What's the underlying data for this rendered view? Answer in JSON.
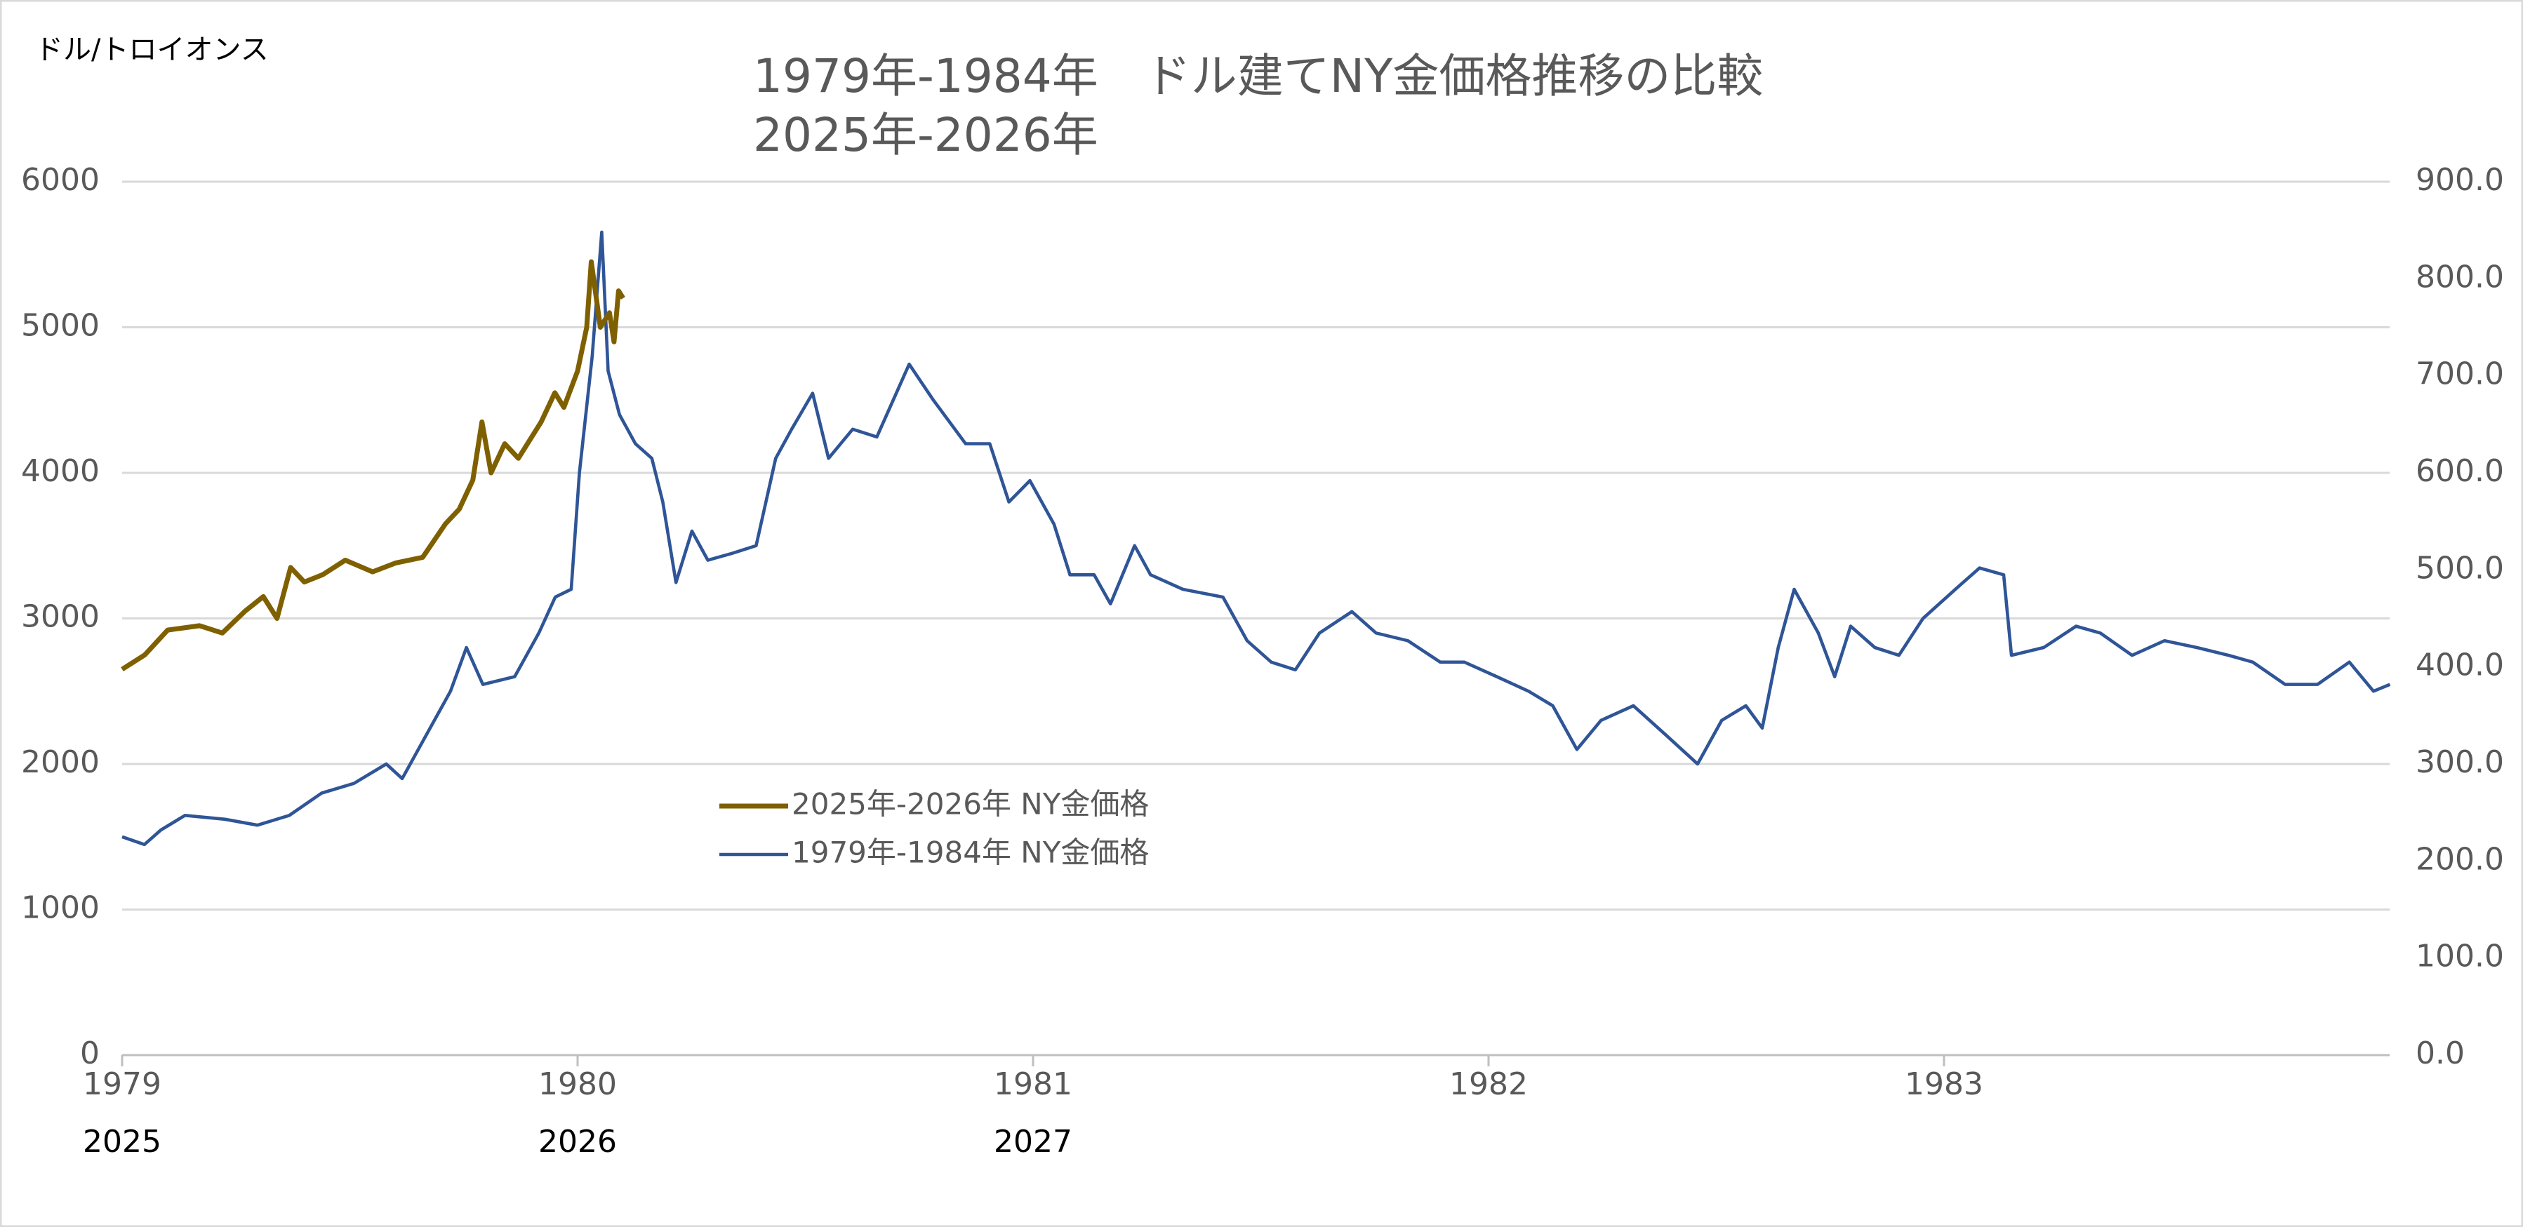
{
  "chart_data": {
    "type": "line",
    "title": [
      "1979年-1984年　ドル建てNY金価格推移の比較",
      "2025年-2026年"
    ],
    "y_axis_label": "ドル/トロイオンス",
    "xlim": [
      1979,
      1984
    ],
    "xticks": [
      1979,
      1980,
      1981,
      1982,
      1983
    ],
    "x2ticks": [
      {
        "value": 1979,
        "label": "2025"
      },
      {
        "value": 1980,
        "label": "2026"
      },
      {
        "value": 1981,
        "label": "2027"
      }
    ],
    "ylim": [
      0,
      6000
    ],
    "yticks": [
      0,
      1000,
      2000,
      3000,
      4000,
      5000,
      6000
    ],
    "y2lim": [
      0,
      900
    ],
    "y2ticks": [
      {
        "value": 0,
        "label": "0.0"
      },
      {
        "value": 100,
        "label": "100.0"
      },
      {
        "value": 200,
        "label": "200.0"
      },
      {
        "value": 300,
        "label": "300.0"
      },
      {
        "value": 400,
        "label": "400.0"
      },
      {
        "value": 500,
        "label": "500.0"
      },
      {
        "value": 600,
        "label": "600.0"
      },
      {
        "value": 700,
        "label": "700.0"
      },
      {
        "value": 800,
        "label": "800.0"
      },
      {
        "value": 900,
        "label": "900.0"
      }
    ],
    "grid": true,
    "legend": "center",
    "series": [
      {
        "name": "2025年-2026年  NY金価格",
        "color": "#7f6000",
        "axis": "y",
        "x": [
          1979.0,
          1979.05,
          1979.1,
          1979.17,
          1979.22,
          1979.27,
          1979.31,
          1979.34,
          1979.37,
          1979.4,
          1979.44,
          1979.49,
          1979.55,
          1979.6,
          1979.66,
          1979.71,
          1979.74,
          1979.77,
          1979.79,
          1979.81,
          1979.84,
          1979.87,
          1979.92,
          1979.95,
          1979.97,
          1980.0,
          1980.02,
          1980.03,
          1980.05,
          1980.07,
          1980.08,
          1980.09,
          1980.1
        ],
        "values": [
          2650,
          2750,
          2920,
          2950,
          2900,
          3050,
          3150,
          3000,
          3350,
          3250,
          3300,
          3400,
          3320,
          3380,
          3420,
          3650,
          3750,
          3950,
          4350,
          4000,
          4200,
          4100,
          4350,
          4550,
          4450,
          4700,
          5000,
          5450,
          5000,
          5100,
          4900,
          5250,
          5200
        ]
      },
      {
        "name": "1979年-1984年  NY金価格",
        "color": "#2f5597",
        "axis": "y2",
        "x": [
          1979.0,
          1979.049,
          1979.085,
          1979.138,
          1979.226,
          1979.297,
          1979.367,
          1979.438,
          1979.509,
          1979.58,
          1979.615,
          1979.668,
          1979.721,
          1979.756,
          1979.792,
          1979.862,
          1979.915,
          1979.951,
          1979.986,
          1980.004,
          1980.032,
          1980.053,
          1980.067,
          1980.092,
          1980.127,
          1980.163,
          1980.187,
          1980.216,
          1980.251,
          1980.286,
          1980.339,
          1980.392,
          1980.435,
          1980.47,
          1980.516,
          1980.551,
          1980.604,
          1980.657,
          1980.728,
          1980.781,
          1980.852,
          1980.905,
          1980.947,
          1980.993,
          1981.046,
          1981.081,
          1981.134,
          1981.17,
          1981.223,
          1981.258,
          1981.329,
          1981.417,
          1981.47,
          1981.523,
          1981.576,
          1981.629,
          1981.7,
          1981.753,
          1981.823,
          1981.894,
          1981.947,
          1982.018,
          1982.088,
          1982.141,
          1982.194,
          1982.247,
          1982.318,
          1982.389,
          1982.459,
          1982.512,
          1982.565,
          1982.601,
          1982.636,
          1982.671,
          1982.724,
          1982.76,
          1982.795,
          1982.848,
          1982.901,
          1982.954,
          1983.025,
          1983.078,
          1983.131,
          1983.148,
          1983.219,
          1983.29,
          1983.343,
          1983.413,
          1983.484,
          1983.555,
          1983.625,
          1983.678,
          1983.749,
          1983.82,
          1983.89,
          1983.943,
          1983.979
        ],
        "values": [
          225,
          217,
          232,
          247,
          243,
          237,
          247,
          270,
          280,
          300,
          285,
          330,
          375,
          420,
          382,
          390,
          435,
          472,
          480,
          600,
          720,
          848,
          705,
          660,
          630,
          615,
          570,
          487,
          540,
          510,
          517,
          525,
          615,
          645,
          682,
          615,
          645,
          637,
          712,
          675,
          630,
          630,
          570,
          592,
          547,
          495,
          495,
          465,
          525,
          495,
          480,
          472,
          427,
          405,
          397,
          435,
          457,
          435,
          427,
          405,
          405,
          390,
          375,
          360,
          315,
          345,
          360,
          330,
          300,
          345,
          360,
          337,
          420,
          480,
          435,
          390,
          442,
          420,
          412,
          450,
          480,
          502,
          495,
          412,
          420,
          442,
          435,
          412,
          427,
          420,
          412,
          405,
          382,
          382,
          405,
          375,
          382
        ]
      }
    ]
  }
}
